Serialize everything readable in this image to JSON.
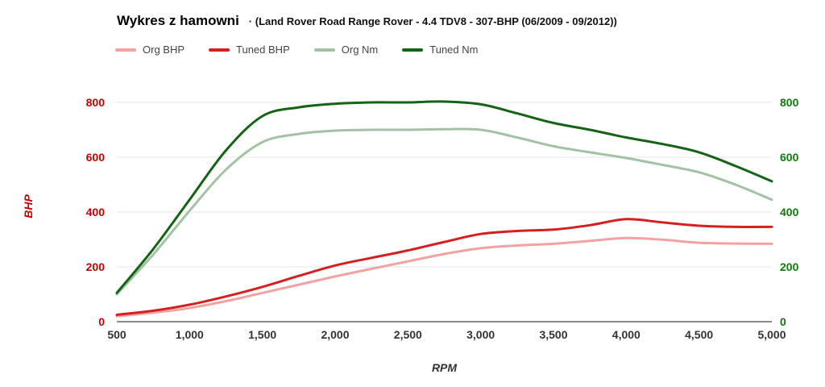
{
  "header": {
    "title": "Wykres z hamowni",
    "subtitle": "· (Land Rover Road Range Rover - 4.4 TDV8 - 307-BHP (06/2009 - 09/2012))"
  },
  "chart_data": {
    "type": "line",
    "title": "Wykres z hamowni",
    "subtitle": "(Land Rover Road Range Rover - 4.4 TDV8 - 307-BHP (06/2009 - 09/2012))",
    "xlabel": "RPM",
    "ylabel_left": "BHP",
    "xlim": [
      500,
      5000
    ],
    "ylim": [
      0,
      800
    ],
    "grid": true,
    "legend_position": "top",
    "x_ticks": [
      "500",
      "1,000",
      "1,500",
      "2,000",
      "2,500",
      "3,000",
      "3,500",
      "4,000",
      "4,500",
      "5,000"
    ],
    "x_tick_values": [
      500,
      1000,
      1500,
      2000,
      2500,
      3000,
      3500,
      4000,
      4500,
      5000
    ],
    "y_ticks": [
      "0",
      "200",
      "400",
      "600",
      "800"
    ],
    "y_tick_values": [
      0,
      200,
      400,
      600,
      800
    ],
    "axis_colors": {
      "left": "#cc0000",
      "right": "#0b7d0b",
      "x": "#333333"
    },
    "grid_color": "#e4e4e4",
    "baseline_color": "#8a8a8a",
    "x": [
      500,
      750,
      1000,
      1250,
      1500,
      1750,
      2000,
      2250,
      2500,
      2750,
      3000,
      3250,
      3500,
      3750,
      4000,
      4250,
      4500,
      4750,
      5000
    ],
    "series": [
      {
        "name": "Org BHP",
        "color": "#f2a2a2",
        "values": [
          20,
          33,
          50,
          75,
          105,
          135,
          165,
          193,
          220,
          247,
          268,
          278,
          284,
          295,
          305,
          299,
          288,
          285,
          284
        ]
      },
      {
        "name": "Tuned BHP",
        "color": "#d42020",
        "values": [
          25,
          40,
          62,
          92,
          127,
          167,
          205,
          233,
          260,
          291,
          320,
          331,
          336,
          352,
          374,
          362,
          350,
          346,
          346
        ]
      },
      {
        "name": "Org Nm",
        "color": "#a3c2a3",
        "values": [
          100,
          245,
          405,
          555,
          655,
          685,
          697,
          700,
          700,
          702,
          700,
          672,
          640,
          618,
          597,
          572,
          545,
          500,
          445
        ]
      },
      {
        "name": "Tuned Nm",
        "color": "#156315",
        "values": [
          105,
          265,
          445,
          625,
          750,
          782,
          795,
          800,
          800,
          803,
          793,
          760,
          725,
          700,
          672,
          648,
          618,
          568,
          512
        ]
      }
    ]
  }
}
